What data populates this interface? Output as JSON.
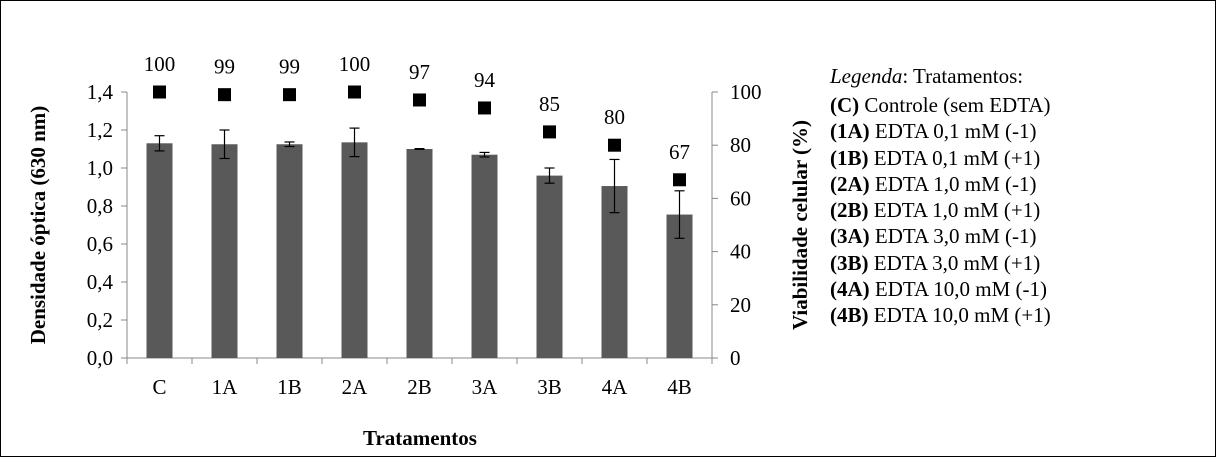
{
  "chart_data": {
    "type": "bar",
    "categories": [
      "C",
      "1A",
      "1B",
      "2A",
      "2B",
      "3A",
      "3B",
      "4A",
      "4B"
    ],
    "series": [
      {
        "name": "Densidade óptica (630 nm)",
        "axis": "left",
        "mark": "bar",
        "values": [
          1.13,
          1.125,
          1.125,
          1.135,
          1.1,
          1.07,
          0.96,
          0.905,
          0.755
        ],
        "error": [
          0.04,
          0.075,
          0.012,
          0.075,
          0.002,
          0.012,
          0.04,
          0.14,
          0.125
        ]
      },
      {
        "name": "Viabilidade celular (%)",
        "axis": "right",
        "mark": "square",
        "values": [
          100,
          99,
          99,
          100,
          97,
          94,
          85,
          80,
          67
        ],
        "labels": [
          "100",
          "99",
          "99",
          "100",
          "97",
          "94",
          "85",
          "80",
          "67"
        ]
      }
    ],
    "xlabel": "Tratamentos",
    "ylabel": "Densidade óptica (630 nm)",
    "y2label": "Viabilidade celular (%)",
    "ylim": [
      0,
      1.4
    ],
    "y2lim": [
      0,
      100
    ],
    "yticks": [
      "0,0",
      "0,2",
      "0,4",
      "0,6",
      "0,8",
      "1,0",
      "1,2",
      "1,4"
    ],
    "y2ticks": [
      "0",
      "20",
      "40",
      "60",
      "80",
      "100"
    ],
    "grid": false,
    "bar_color": "#595959",
    "marker_color": "#000000"
  },
  "legend": {
    "title_italic": "Legenda",
    "title_rest": ": Tratamentos:",
    "items": [
      {
        "code": "(C)",
        "text": " Controle (sem EDTA)"
      },
      {
        "code": "(1A)",
        "text": " EDTA 0,1 mM (-1)"
      },
      {
        "code": "(1B)",
        "text": " EDTA 0,1 mM (+1)"
      },
      {
        "code": "(2A)",
        "text": " EDTA 1,0 mM (-1)"
      },
      {
        "code": "(2B)",
        "text": " EDTA 1,0 mM (+1)"
      },
      {
        "code": "(3A)",
        "text": " EDTA 3,0 mM (-1)"
      },
      {
        "code": "(3B)",
        "text": " EDTA 3,0 mM (+1)"
      },
      {
        "code": "(4A)",
        "text": " EDTA 10,0 mM (-1)"
      },
      {
        "code": "(4B)",
        "text": " EDTA 10,0 mM (+1)"
      }
    ]
  }
}
